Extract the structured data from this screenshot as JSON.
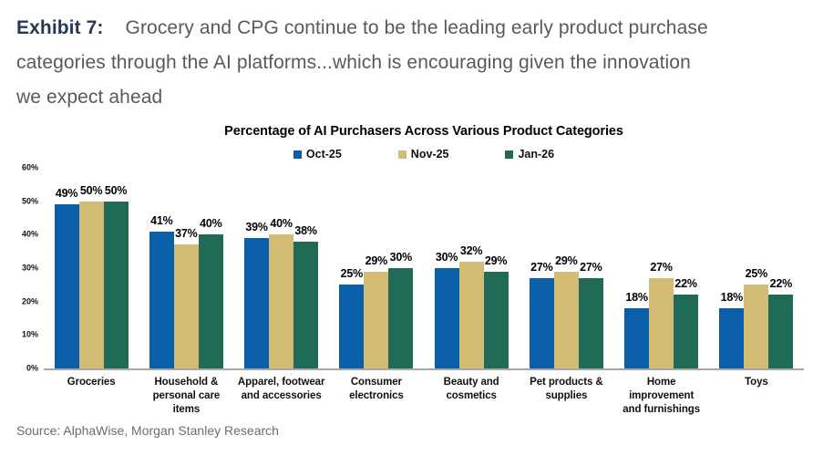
{
  "header": {
    "exhibit_label": "Exhibit 7:",
    "line1": "Grocery and CPG continue to be the leading early product purchase",
    "line2": "categories through the AI platforms...which is encouraging given the innovation",
    "line3": "we expect ahead"
  },
  "chart_data": {
    "type": "bar",
    "title": "Percentage of AI Purchasers Across Various Product Categories",
    "categories": [
      "Groceries",
      "Household  &\npersonal care items",
      "Apparel, footwear\nand accessories",
      "Consumer\nelectronics",
      "Beauty and\ncosmetics",
      "Pet products &\nsupplies",
      "Home improvement\nand furnishings",
      "Toys"
    ],
    "series": [
      {
        "name": "Oct-25",
        "color": "#0B5FA9",
        "values": [
          49,
          41,
          39,
          25,
          30,
          27,
          18,
          18
        ]
      },
      {
        "name": "Nov-25",
        "color": "#D2BC74",
        "values": [
          50,
          37,
          40,
          29,
          32,
          29,
          27,
          25
        ]
      },
      {
        "name": "Jan-26",
        "color": "#1F6B57",
        "values": [
          50,
          40,
          38,
          30,
          29,
          27,
          22,
          22
        ]
      }
    ],
    "ylim": [
      0,
      60
    ],
    "yticks": [
      0,
      10,
      20,
      30,
      40,
      50,
      60
    ],
    "ytick_suffix": "%",
    "value_suffix": "%",
    "grid": false,
    "legend_position": "top",
    "axis_color": "#A6A6A6"
  },
  "source": "Source: AlphaWise, Morgan Stanley Research"
}
